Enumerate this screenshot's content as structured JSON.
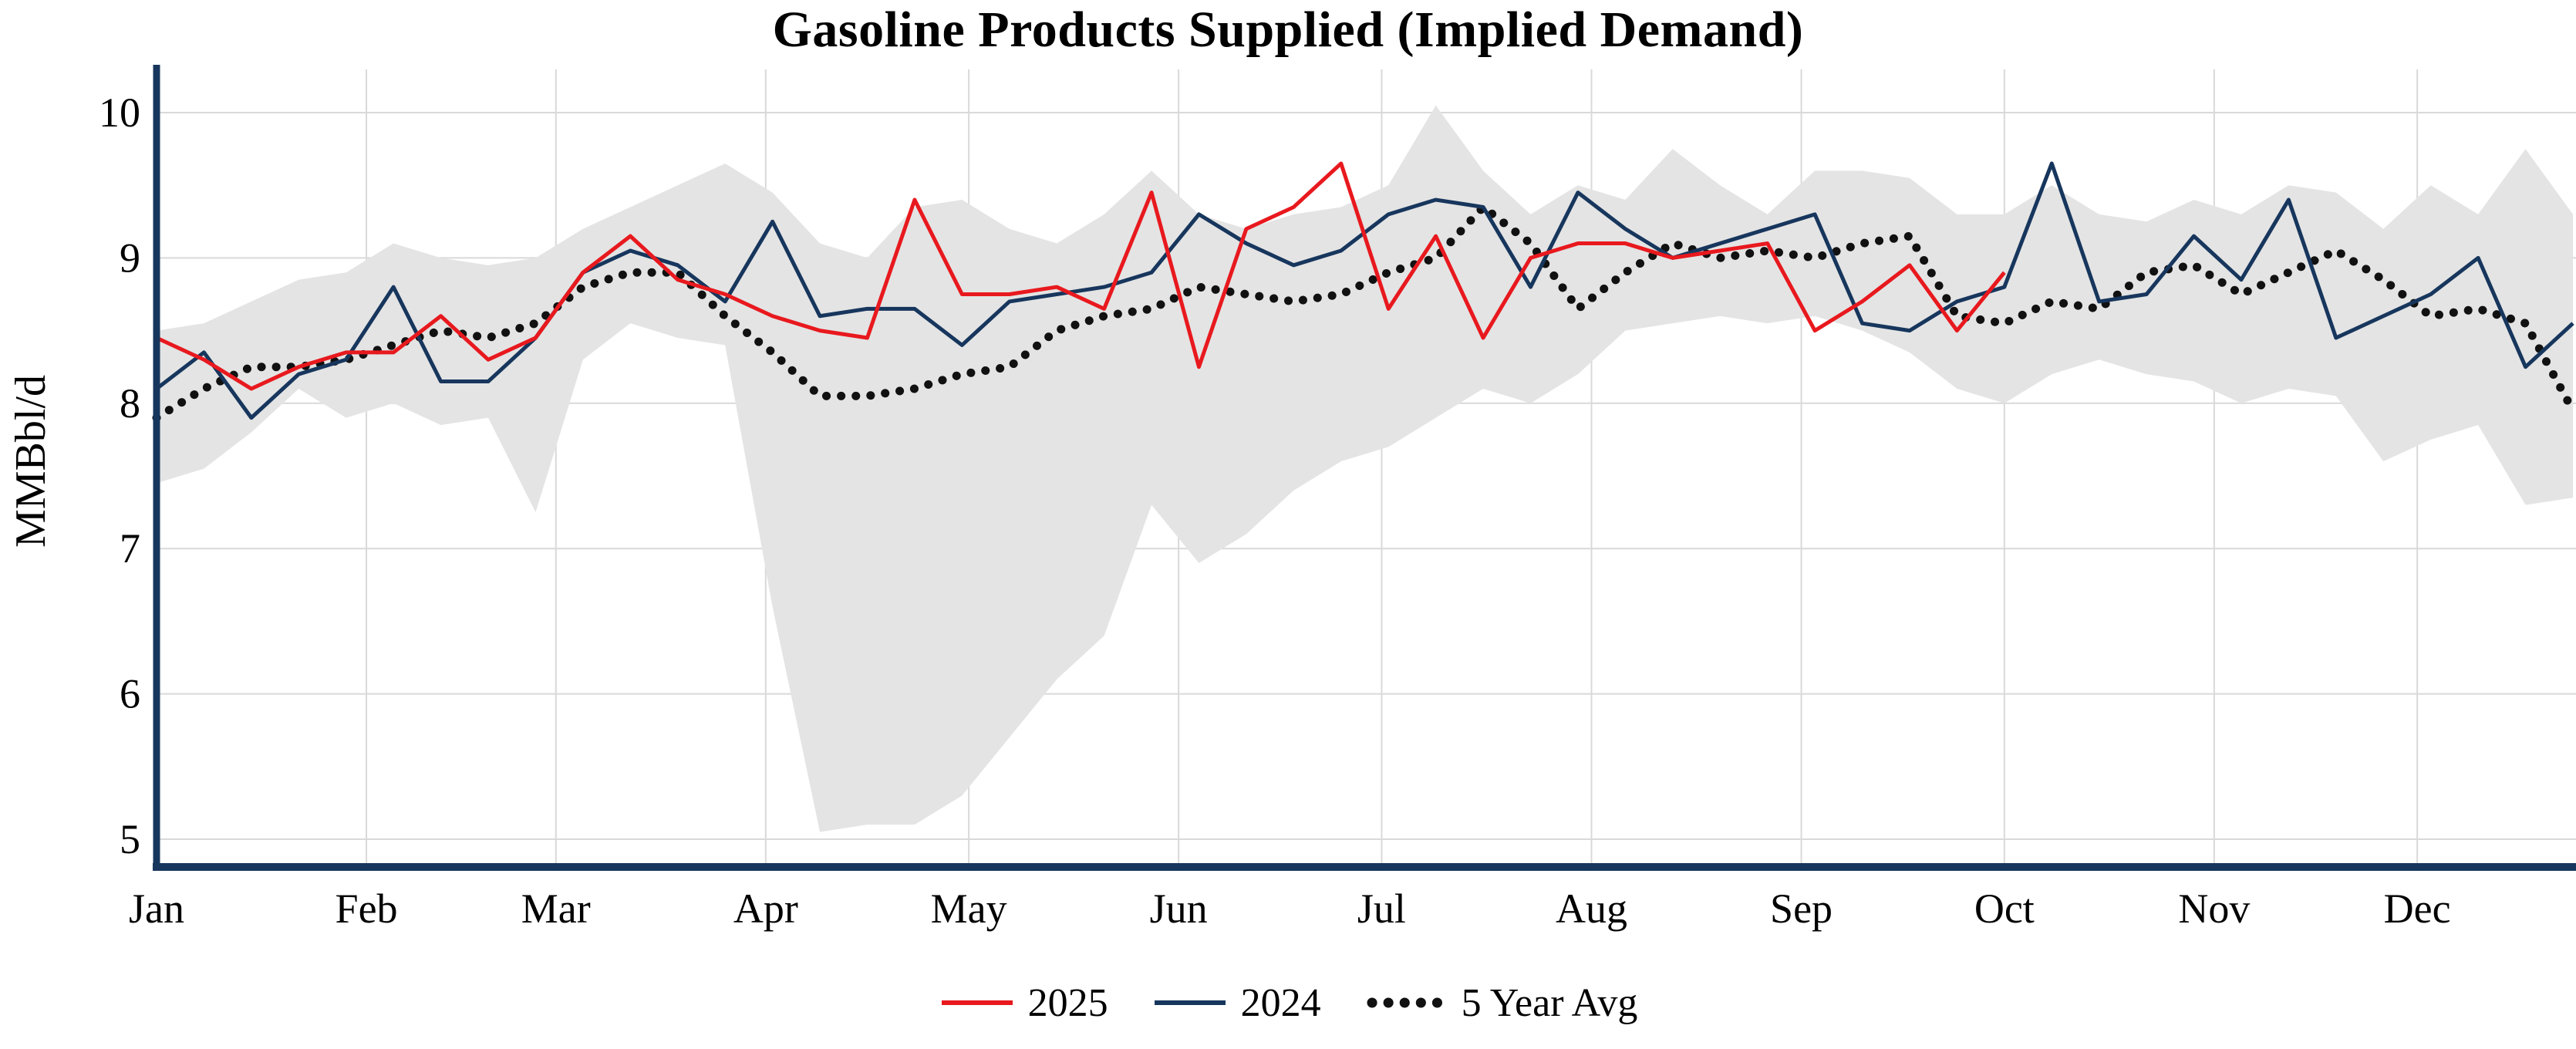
{
  "chart_data": {
    "type": "line",
    "title": "Gasoline Products Supplied (Implied Demand)",
    "ylabel": "MMBbl/d",
    "xlabel": "",
    "ylim": [
      5,
      10
    ],
    "yticks": [
      5,
      6,
      7,
      8,
      9,
      10
    ],
    "grid": true,
    "legend_position": "bottom",
    "x_axis": {
      "unit": "weekly",
      "months": [
        "Jan",
        "Feb",
        "Mar",
        "Apr",
        "May",
        "Jun",
        "Jul",
        "Aug",
        "Sep",
        "Oct",
        "Nov",
        "Dec"
      ]
    },
    "series": [
      {
        "name": "2025",
        "style": "solid",
        "color": "#e8191e",
        "values": [
          8.45,
          8.3,
          8.1,
          8.25,
          8.35,
          8.35,
          8.6,
          8.3,
          8.45,
          8.9,
          9.15,
          8.85,
          8.75,
          8.6,
          8.5,
          8.45,
          9.4,
          8.75,
          8.75,
          8.8,
          8.65,
          9.45,
          8.25,
          9.2,
          9.35,
          9.65,
          8.65,
          9.15,
          8.45,
          9.0,
          9.1,
          9.1,
          9.0,
          9.05,
          9.1,
          8.5,
          8.7,
          8.95,
          8.5,
          8.9
        ]
      },
      {
        "name": "2024",
        "style": "solid",
        "color": "#17365d",
        "values": [
          8.1,
          8.35,
          7.9,
          8.2,
          8.3,
          8.8,
          8.15,
          8.15,
          8.45,
          8.9,
          9.05,
          8.95,
          8.7,
          9.25,
          8.6,
          8.65,
          8.65,
          8.4,
          8.7,
          8.75,
          8.8,
          8.9,
          9.3,
          9.1,
          8.95,
          9.05,
          9.3,
          9.4,
          9.35,
          8.8,
          9.45,
          9.2,
          9.0,
          9.1,
          9.2,
          9.3,
          8.55,
          8.5,
          8.7,
          8.8,
          9.65,
          8.7,
          8.75,
          9.15,
          8.85,
          9.4,
          8.45,
          8.6,
          8.75,
          9.0,
          8.25,
          8.55
        ]
      },
      {
        "name": "5 Year Avg",
        "style": "dotted",
        "color": "#111111",
        "values": [
          7.9,
          8.1,
          8.25,
          8.25,
          8.3,
          8.4,
          8.5,
          8.45,
          8.55,
          8.8,
          8.9,
          8.9,
          8.6,
          8.35,
          8.05,
          8.05,
          8.1,
          8.2,
          8.25,
          8.5,
          8.6,
          8.65,
          8.8,
          8.75,
          8.7,
          8.75,
          8.9,
          9.0,
          9.35,
          9.1,
          8.65,
          8.9,
          9.1,
          9.0,
          9.05,
          9.0,
          9.1,
          9.15,
          8.6,
          8.55,
          8.7,
          8.65,
          8.9,
          8.95,
          8.75,
          8.9,
          9.05,
          8.85,
          8.6,
          8.65,
          8.55,
          7.95
        ]
      }
    ],
    "band": {
      "name": "5-year min-max range",
      "color": "#e4e4e4",
      "upper": [
        8.5,
        8.55,
        8.7,
        8.85,
        8.9,
        9.1,
        9.0,
        8.95,
        9.0,
        9.2,
        9.35,
        9.5,
        9.65,
        9.45,
        9.1,
        9.0,
        9.35,
        9.4,
        9.2,
        9.1,
        9.3,
        9.6,
        9.3,
        9.2,
        9.3,
        9.35,
        9.5,
        10.05,
        9.6,
        9.3,
        9.5,
        9.4,
        9.75,
        9.5,
        9.3,
        9.6,
        9.6,
        9.55,
        9.3,
        9.3,
        9.5,
        9.3,
        9.25,
        9.4,
        9.3,
        9.5,
        9.45,
        9.2,
        9.5,
        9.3,
        9.75,
        9.3
      ],
      "lower": [
        7.45,
        7.55,
        7.8,
        8.1,
        7.9,
        8.0,
        7.85,
        7.9,
        7.25,
        8.3,
        8.55,
        8.45,
        8.4,
        6.6,
        5.05,
        5.1,
        5.1,
        5.3,
        5.7,
        6.1,
        6.4,
        7.3,
        6.9,
        7.1,
        7.4,
        7.6,
        7.7,
        7.9,
        8.1,
        8.0,
        8.2,
        8.5,
        8.55,
        8.6,
        8.55,
        8.6,
        8.5,
        8.35,
        8.1,
        8.0,
        8.2,
        8.3,
        8.2,
        8.15,
        8.0,
        8.1,
        8.05,
        7.6,
        7.75,
        7.85,
        7.3,
        7.35
      ]
    },
    "colors": {
      "axis": "#17365d",
      "gridline": "#d9d9d9",
      "tick_text": "#000000",
      "background": "#ffffff"
    }
  }
}
